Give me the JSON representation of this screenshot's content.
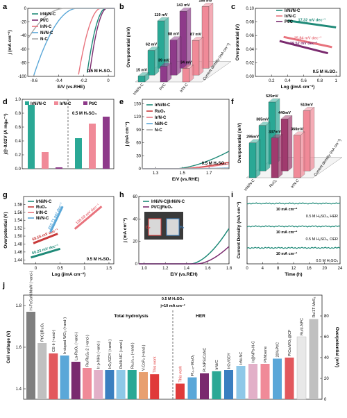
{
  "panels": {
    "a": {
      "label": "a",
      "type": "line",
      "xlabel": "E/V (vs.RHE)",
      "ylabel": "j (mA cm⁻²)",
      "xlim": [
        -0.65,
        0.05
      ],
      "ylim": [
        -100,
        0
      ],
      "xticks": [
        -0.6,
        -0.4,
        -0.2,
        0.0
      ],
      "yticks": [
        0,
        -20,
        -40,
        -60,
        -80,
        -100
      ],
      "condition": "0.5 M H₂SO₄",
      "series": [
        {
          "name": "IrNi/N-C",
          "color": "#1f8a78",
          "onset": -0.02,
          "k": 42
        },
        {
          "name": "Pt/C",
          "color": "#7a2a6e",
          "onset": -0.01,
          "k": 48
        },
        {
          "name": "Ir/N-C",
          "color": "#e8737d",
          "onset": -0.06,
          "k": 30
        },
        {
          "name": "Ni/N-C",
          "color": "#5aa7d8",
          "onset": -0.25,
          "k": 8
        },
        {
          "name": "N-C",
          "color": "#a8a8a8",
          "onset": -0.35,
          "k": 5
        }
      ]
    },
    "b": {
      "label": "b",
      "type": "bar3d",
      "ylabel": "Overpotential (mV)",
      "categories": [
        "IrNi/N-C",
        "Pt/C",
        "Ir/N-C"
      ],
      "rows": [
        {
          "values": [
            15,
            39,
            34
          ],
          "labels": [
            "15 mV",
            "39 mV",
            "34 mV"
          ]
        },
        {
          "values": [
            62,
            88,
            87
          ],
          "labels": [
            "62 mV",
            "88 mV",
            "87 mV"
          ]
        },
        {
          "values": [
            119,
            143,
            155
          ],
          "labels": [
            "119 mV",
            "143 mV",
            "155 mV"
          ]
        }
      ],
      "depth_label": "Current density (mA cm⁻²)",
      "colors": [
        "#2aa895",
        "#8e3a8a",
        "#f08a98"
      ]
    },
    "c": {
      "label": "c",
      "type": "line",
      "xlabel": "Log (j/mA cm⁻²)",
      "ylabel": "Overpotential (V)",
      "xlim": [
        0.0,
        1.05
      ],
      "ylim": [
        0.0,
        0.1
      ],
      "xticks": [
        0.2,
        0.4,
        0.6,
        0.8,
        1.0
      ],
      "yticks": [
        0.0,
        0.02,
        0.04,
        0.06,
        0.08,
        0.1
      ],
      "condition": "0.5 M H₂SO₄",
      "series": [
        {
          "name": "IrNi/N-C",
          "color": "#1f8a78",
          "x": [
            0.4,
            1.0
          ],
          "y": [
            0.082,
            0.072
          ],
          "slope_label": "17.32 mV dec⁻¹"
        },
        {
          "name": "Ir/N-C",
          "color": "#e8737d",
          "x": [
            0.35,
            0.95
          ],
          "y": [
            0.058,
            0.043
          ],
          "slope_label": "25.84 mV dec⁻¹"
        },
        {
          "name": "Pt/C",
          "color": "#7a2a6e",
          "x": [
            0.3,
            0.9
          ],
          "y": [
            0.052,
            0.034
          ],
          "slope_label": "29.52 mV dec⁻¹"
        }
      ]
    },
    "d": {
      "label": "d",
      "type": "bar",
      "ylabel": "j@-0.02V (A mgₘ⁻¹)",
      "condition": "0.5 M H₂SO₄",
      "legend": [
        "IrNi/N-C",
        "Ir/N-C",
        "Pt/C"
      ],
      "groups": [
        {
          "values": [
            0.92,
            0.24,
            0.02
          ]
        },
        {
          "values": [
            0.44,
            0.65,
            0.75
          ]
        }
      ],
      "ylim": [
        0,
        1.0
      ],
      "yticks": [
        0.0,
        0.2,
        0.4,
        0.6,
        0.8,
        1.0
      ],
      "colors": [
        "#2aa895",
        "#f08a98",
        "#8e3a8a"
      ]
    },
    "e": {
      "label": "e",
      "type": "line",
      "xlabel": "E/V (vs.RHE)",
      "ylabel": "j (mA cm⁻²)",
      "xlim": [
        1.2,
        1.85
      ],
      "ylim": [
        0,
        160
      ],
      "xticks": [
        1.3,
        1.5,
        1.7
      ],
      "yticks": [
        0,
        30,
        60,
        90,
        120,
        150
      ],
      "condition": "0.5 M H₂SO₄",
      "series": [
        {
          "name": "IrNi/N-C",
          "color": "#1f8a78",
          "onset": 1.45,
          "k": 1.1
        },
        {
          "name": "RuO₂",
          "color": "#c83a3a",
          "onset": 1.47,
          "k": 0.45
        },
        {
          "name": "Ir/N-C",
          "color": "#e8737d",
          "onset": 1.48,
          "k": 0.35
        },
        {
          "name": "Ni/N-C",
          "color": "#5aa7d8",
          "onset": 1.55,
          "k": 0.08
        },
        {
          "name": "N-C",
          "color": "#a8a8a8",
          "onset": 1.6,
          "k": 0.05
        }
      ]
    },
    "f": {
      "label": "f",
      "type": "bar3d",
      "ylabel": "Overpotential (mV)",
      "categories": [
        "IrNi/N-C",
        "RuO₂",
        "Ir/N-C"
      ],
      "rows": [
        {
          "values": [
            295,
            337,
            360
          ],
          "labels": [
            "295mV",
            "337mV",
            "360mV"
          ]
        },
        {
          "values": [
            385,
            440,
            510
          ],
          "labels": [
            "385mV",
            "440mV",
            "510mV"
          ]
        },
        {
          "values": [
            525
          ],
          "labels": [
            "525mV"
          ]
        }
      ],
      "depth_label": "Current density (mA cm⁻²)",
      "colors": [
        "#2aa895",
        "#a03a6e",
        "#f08a98"
      ]
    },
    "g": {
      "label": "g",
      "type": "line",
      "xlabel": "Log (j/mA cm⁻²)",
      "ylabel": "Overpotential (V)",
      "xlim": [
        -0.25,
        1.6
      ],
      "ylim": [
        1.43,
        1.6
      ],
      "xticks": [
        0.0,
        0.5,
        1.0,
        1.5
      ],
      "yticks": [
        1.44,
        1.46,
        1.48,
        1.5,
        1.52,
        1.54,
        1.56,
        1.58
      ],
      "condition": "0.5 M H₂SO₄",
      "series": [
        {
          "name": "IrNi/N-C",
          "color": "#1f8a78",
          "x": [
            -0.1,
            0.5
          ],
          "y": [
            1.446,
            1.468
          ],
          "slope_label": "60.23 mV dec⁻¹"
        },
        {
          "name": "RuO₂",
          "color": "#c83a3a",
          "x": [
            -0.05,
            0.45
          ],
          "y": [
            1.482,
            1.506
          ],
          "slope_label": "68.55 mV dec⁻¹"
        },
        {
          "name": "Ir/N-C",
          "color": "#e8737d",
          "x": [
            0.8,
            1.35
          ],
          "y": [
            1.518,
            1.575
          ],
          "slope_label": "138.09 mV dec⁻¹"
        },
        {
          "name": "Ni/N-C",
          "color": "#5aa7d8",
          "x": [
            0.3,
            0.55
          ],
          "y": [
            1.51,
            1.575
          ],
          "slope_label": "253.71 mV dec⁻¹"
        }
      ]
    },
    "h": {
      "label": "h",
      "type": "line",
      "xlabel": "E/V (vs.REH)",
      "ylabel": "j (mA cm⁻²)",
      "xlim": [
        0.95,
        1.8
      ],
      "ylim": [
        0,
        60
      ],
      "xticks": [
        1.0,
        1.2,
        1.4,
        1.6,
        1.8
      ],
      "yticks": [
        0,
        20,
        40,
        60
      ],
      "series": [
        {
          "name": "IrNi/N-C||IrNi/N-C",
          "color": "#1f8a78",
          "onset": 1.44,
          "k": 180
        },
        {
          "name": "Pt/C||RuO₂",
          "color": "#7a2a6e",
          "onset": 1.5,
          "k": 120
        }
      ],
      "photo_labels": [
        "O₂",
        "H₂"
      ]
    },
    "i": {
      "label": "i",
      "type": "line",
      "xlabel": "Time (h)",
      "ylabel": "Current Density (mA cm⁻²)",
      "xlim": [
        0,
        24
      ],
      "xticks": [
        0,
        4,
        8,
        12,
        16,
        20,
        24
      ],
      "traces": [
        {
          "label": "10 mA cm⁻²",
          "note": "0.5 M H₂SO₄, HER"
        },
        {
          "label": "10 mA cm⁻²",
          "note": "0.5 M H₂SO₄, OER"
        },
        {
          "label": "10 mA cm⁻²",
          "note": "0.5 M H₂SO₄"
        }
      ],
      "color": "#1f8a78"
    },
    "j": {
      "label": "j",
      "type": "bar",
      "ylabel_left": "Cell voltage (V)",
      "ylabel_right": "Overpotential (mV)",
      "yticks_left": [
        1.4,
        1.6,
        1.8
      ],
      "yticks_right": [
        0,
        20,
        40,
        60,
        80
      ],
      "header_lines": [
        "0.5 M H₂SO₄",
        "j=10 mA cm⁻²"
      ],
      "section_left": "Total hydrolysis",
      "section_right": "HER",
      "left_bars": [
        {
          "label": "H-FeCoNiMnW (+and-)",
          "value": 1.77,
          "color": "#7f7f7f"
        },
        {
          "label": "Pt/C||RuO₂",
          "value": 1.62,
          "color": "#c0c0c0"
        },
        {
          "label": "CE-Ir (+and-)",
          "value": 1.57,
          "color": "#e2585d"
        },
        {
          "label": "Ir-doped WO₃ (+and-)",
          "value": 1.56,
          "color": "#5aa7d8"
        },
        {
          "label": "La-RuO₂ (+and-)",
          "value": 1.53,
          "color": "#7a2a6e"
        },
        {
          "label": "Ru/RuS₂-2 (+and-)",
          "value": 1.5,
          "color": "#f08a98"
        },
        {
          "label": "Ir p-NHs (+and-)",
          "value": 1.49,
          "color": "#e2b0c8"
        },
        {
          "label": "IrOₓ/GDY (+and-)",
          "value": 1.49,
          "color": "#3a7fc0"
        },
        {
          "label": "RuNi-NC (+and-)",
          "value": 1.49,
          "color": "#8ec8e8"
        },
        {
          "label": "Ru₁Ir₂.₅ (+and-)",
          "value": 1.49,
          "color": "#2aa895"
        },
        {
          "label": "V-CoP₂ (+and-)",
          "value": 1.48,
          "color": "#e8a070"
        },
        {
          "label": "This work",
          "value": 1.47,
          "color": "#e03a3a"
        }
      ],
      "right_bars": [
        {
          "label": "This work",
          "value": 15,
          "color": "#e03a3a"
        },
        {
          "label": "Pt₀.₄₇-MoₓOᵧ",
          "value": 21,
          "color": "#5aa7d8"
        },
        {
          "label": "Pt-NPS/CoNC",
          "value": 25,
          "color": "#7a2a6e"
        },
        {
          "label": "IrNi/C",
          "value": 27,
          "color": "#2aa895"
        },
        {
          "label": "IrOₓ/GDY",
          "value": 28,
          "color": "#3a7fc0"
        },
        {
          "label": "IrNi-NC",
          "value": 32,
          "color": "#8ec8e8"
        },
        {
          "label": "Ir@NPs-N-C",
          "value": 34,
          "color": "#e2b0c8"
        },
        {
          "label": "Pt/Mxene",
          "value": 34,
          "color": "#f08a98"
        },
        {
          "label": "20%Pt/C",
          "value": 39,
          "color": "#5aa7d8"
        },
        {
          "label": "PtCo/WO₃@CF",
          "value": 40,
          "color": "#e2585d"
        },
        {
          "label": "Ru/d-NPC",
          "value": 60,
          "color": "#e8e8e8"
        },
        {
          "label": "Ru/1T-MoS₂",
          "value": 77,
          "color": "#c0c0c0"
        }
      ]
    }
  }
}
